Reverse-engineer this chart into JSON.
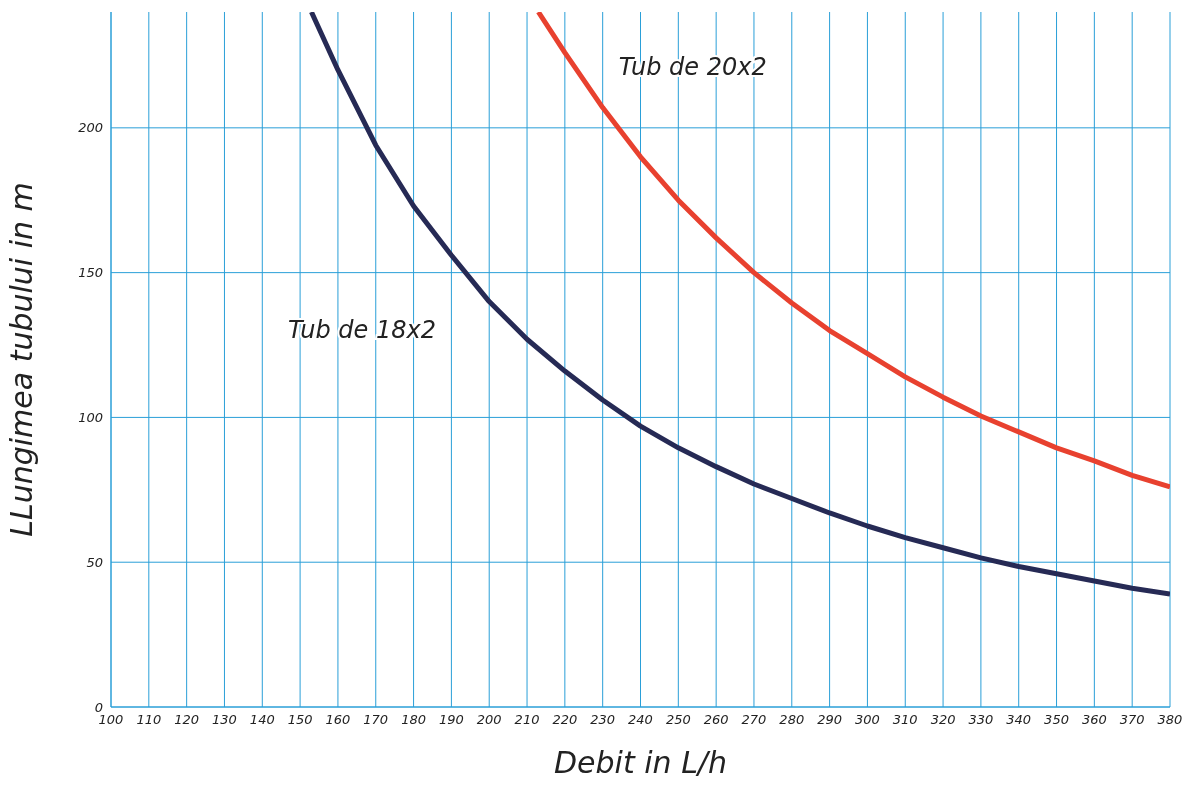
{
  "chart_data": {
    "type": "line",
    "xlabel": "Debit in L/h",
    "ylabel": "LLungimea tubului in m",
    "xlim": [
      100,
      380
    ],
    "xticks": [
      100,
      110,
      120,
      130,
      140,
      150,
      160,
      170,
      180,
      190,
      200,
      210,
      220,
      230,
      240,
      250,
      260,
      270,
      280,
      290,
      300,
      310,
      320,
      330,
      340,
      350,
      360,
      370,
      380
    ],
    "ylim": [
      0,
      240
    ],
    "yticks": [
      0,
      50,
      100,
      150,
      200
    ],
    "grid": true,
    "marker": "none",
    "line_style": "solid",
    "series": [
      {
        "name": "Tub de 18x2",
        "color": "#262a55",
        "x": [
          153,
          160,
          170,
          180,
          190,
          200,
          210,
          220,
          230,
          240,
          250,
          260,
          270,
          280,
          290,
          300,
          310,
          320,
          330,
          340,
          350,
          360,
          370,
          380
        ],
        "values": [
          240,
          220,
          194,
          173,
          156,
          140,
          127,
          116,
          106,
          97,
          89.5,
          83,
          77,
          72,
          67,
          62.5,
          58.5,
          55,
          51.5,
          48.5,
          46,
          43.5,
          41,
          39
        ]
      },
      {
        "name": "Tub de 20x2",
        "color": "#e8412f",
        "x": [
          213,
          220,
          230,
          240,
          250,
          260,
          270,
          280,
          290,
          300,
          310,
          320,
          330,
          340,
          350,
          360,
          370,
          380
        ],
        "values": [
          240,
          226,
          207,
          190,
          175,
          162,
          150,
          139.5,
          130,
          122,
          114,
          107,
          100.5,
          95,
          89.5,
          85,
          80,
          76
        ]
      }
    ]
  }
}
